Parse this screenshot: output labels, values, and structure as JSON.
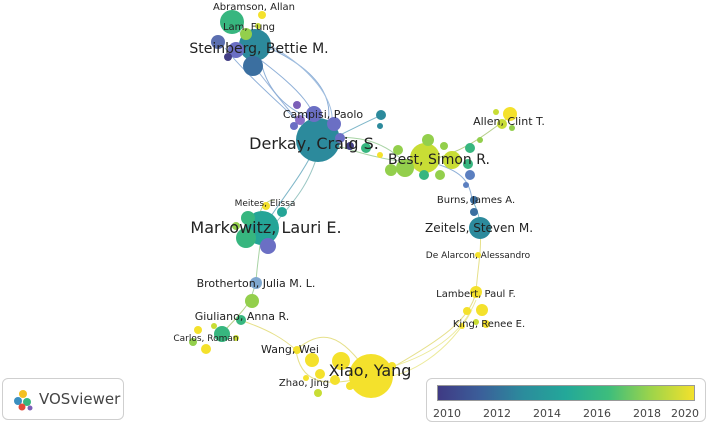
{
  "labels": [
    {
      "id": "abramson",
      "text": "Abramson, Allan"
    },
    {
      "id": "lam",
      "text": "Lam, Fung"
    },
    {
      "id": "steinberg",
      "text": "Steinberg, Bettie M."
    },
    {
      "id": "campisi",
      "text": "Campisi, Paolo"
    },
    {
      "id": "derkay",
      "text": "Derkay, Craig S."
    },
    {
      "id": "allen",
      "text": "Allen, Clint T."
    },
    {
      "id": "best",
      "text": "Best, Simon R."
    },
    {
      "id": "burns",
      "text": "Burns, James A."
    },
    {
      "id": "meites",
      "text": "Meites, Elissa"
    },
    {
      "id": "markowitz",
      "text": "Markowitz, Lauri E."
    },
    {
      "id": "zeitels",
      "text": "Zeitels, Steven M."
    },
    {
      "id": "dealarcon",
      "text": "De Alarcon, Alessandro"
    },
    {
      "id": "brotherton",
      "text": "Brotherton, Julia M. L."
    },
    {
      "id": "lambert",
      "text": "Lambert, Paul F."
    },
    {
      "id": "giuliano",
      "text": "Giuliano, Anna R."
    },
    {
      "id": "king",
      "text": "King, Renee E."
    },
    {
      "id": "carlos",
      "text": "Carlos, Roman"
    },
    {
      "id": "wang",
      "text": "Wang, Wei"
    },
    {
      "id": "xiao",
      "text": "Xiao, Yang"
    },
    {
      "id": "zhao",
      "text": "Zhao, Jing"
    }
  ],
  "colors": {
    "y2010": "#433e85",
    "y2012": "#3b5f9a",
    "y2014": "#2c8a9c",
    "y2015": "#25a597",
    "y2016": "#37b67f",
    "y2018": "#93cf4c",
    "y2019": "#c8dd35",
    "y2020": "#f4e12c"
  },
  "logo": {
    "text": "VOSviewer",
    "icon": "vosviewer-logo-icon"
  },
  "legend": {
    "ticks": [
      "2010",
      "2012",
      "2014",
      "2016",
      "2018",
      "2020"
    ]
  }
}
